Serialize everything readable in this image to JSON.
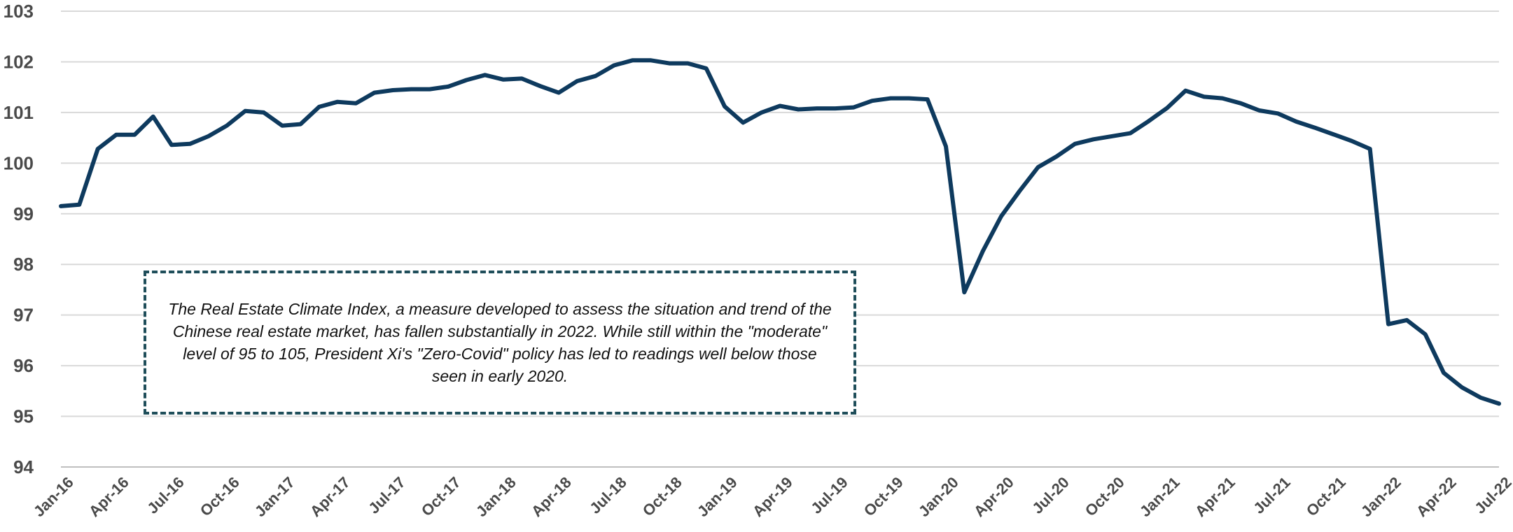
{
  "chart_data": {
    "type": "line",
    "title": "",
    "xlabel": "",
    "ylabel": "",
    "ylim": [
      94,
      103
    ],
    "yticks": [
      94,
      95,
      96,
      97,
      98,
      99,
      100,
      101,
      102,
      103
    ],
    "grid": true,
    "legend": "none",
    "line_color": "#0e3a5e",
    "x": [
      "Jan-16",
      "Feb-16",
      "Mar-16",
      "Apr-16",
      "May-16",
      "Jun-16",
      "Jul-16",
      "Aug-16",
      "Sep-16",
      "Oct-16",
      "Nov-16",
      "Dec-16",
      "Jan-17",
      "Feb-17",
      "Mar-17",
      "Apr-17",
      "May-17",
      "Jun-17",
      "Jul-17",
      "Aug-17",
      "Sep-17",
      "Oct-17",
      "Nov-17",
      "Dec-17",
      "Jan-18",
      "Feb-18",
      "Mar-18",
      "Apr-18",
      "May-18",
      "Jun-18",
      "Jul-18",
      "Aug-18",
      "Sep-18",
      "Oct-18",
      "Nov-18",
      "Dec-18",
      "Jan-19",
      "Feb-19",
      "Mar-19",
      "Apr-19",
      "May-19",
      "Jun-19",
      "Jul-19",
      "Aug-19",
      "Sep-19",
      "Oct-19",
      "Nov-19",
      "Dec-19",
      "Jan-20",
      "Feb-20",
      "Mar-20",
      "Apr-20",
      "May-20",
      "Jun-20",
      "Jul-20",
      "Aug-20",
      "Sep-20",
      "Oct-20",
      "Nov-20",
      "Dec-20",
      "Jan-21",
      "Feb-21",
      "Mar-21",
      "Apr-21",
      "May-21",
      "Jun-21",
      "Jul-21",
      "Aug-21",
      "Sep-21",
      "Oct-21",
      "Nov-21",
      "Dec-21",
      "Jan-22",
      "Feb-22",
      "Mar-22",
      "Apr-22",
      "May-22",
      "Jun-22",
      "Jul-22"
    ],
    "x_tick_labels": [
      "Jan-16",
      "Apr-16",
      "Jul-16",
      "Oct-16",
      "Jan-17",
      "Apr-17",
      "Jul-17",
      "Oct-17",
      "Jan-18",
      "Apr-18",
      "Jul-18",
      "Oct-18",
      "Jan-19",
      "Apr-19",
      "Jul-19",
      "Oct-19",
      "Jan-20",
      "Apr-20",
      "Jul-20",
      "Oct-20",
      "Jan-21",
      "Apr-21",
      "Jul-21",
      "Oct-21",
      "Jan-22",
      "Apr-22",
      "Jul-22"
    ],
    "series": [
      {
        "values": [
          99.15,
          99.18,
          100.28,
          100.56,
          100.56,
          100.92,
          100.36,
          100.38,
          100.53,
          100.74,
          101.03,
          101.0,
          100.74,
          100.77,
          101.11,
          101.21,
          101.18,
          101.39,
          101.44,
          101.46,
          101.46,
          101.51,
          101.64,
          101.74,
          101.65,
          101.67,
          101.52,
          101.39,
          101.62,
          101.72,
          101.93,
          102.03,
          102.03,
          101.97,
          101.97,
          101.87,
          101.12,
          100.8,
          101.0,
          101.13,
          101.06,
          101.08,
          101.08,
          101.1,
          101.23,
          101.28,
          101.28,
          101.26,
          100.33,
          97.45,
          98.26,
          98.95,
          99.45,
          99.92,
          100.13,
          100.38,
          100.47,
          100.53,
          100.59,
          100.83,
          101.09,
          101.43,
          101.31,
          101.28,
          101.18,
          101.04,
          100.98,
          100.82,
          100.7,
          100.57,
          100.44,
          100.28,
          96.82,
          96.9,
          96.62,
          95.86,
          95.57,
          95.37,
          95.25
        ]
      }
    ],
    "annotations": [
      {
        "text": "The Real Estate Climate Index, a measure developed to assess the situation and trend of the Chinese real estate market, has fallen substantially in 2022.  While still within the \"moderate\" level of 95 to 105,  President Xi's \"Zero-Covid\" policy has led to readings well below those seen in early 2020."
      }
    ]
  }
}
